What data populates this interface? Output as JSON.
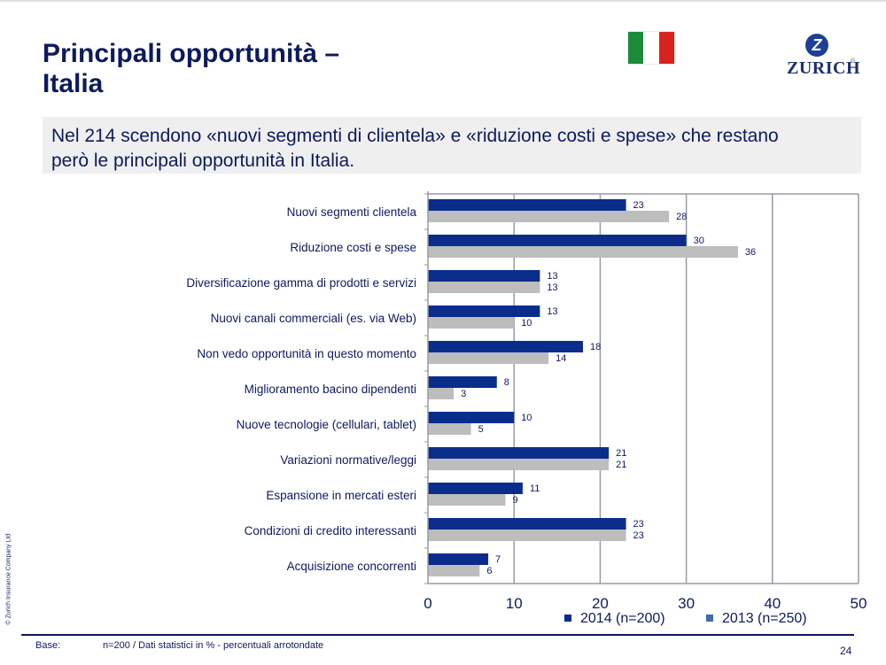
{
  "slide": {
    "title_line1": "Principali opportunità –",
    "title_line2": "Italia",
    "subtitle_line1": "Nel 214 scendono «nuovi segmenti di clientela» e «riduzione costi e spese» che restano",
    "subtitle_line2": "però le principali opportunità in Italia.",
    "logo_text": "ZURICH",
    "logo_mark": "Z",
    "logo_registered": "®",
    "flag_colors": [
      "#1a8c3c",
      "#ffffff",
      "#d9221e"
    ],
    "copyright": "© Zurich Insurance Company Ltd",
    "footer_base_label": "Base:",
    "footer_note": "n=200 / Dati statistici in %   - percentuali arrotondate",
    "page_number": "24"
  },
  "chart_data": {
    "type": "bar",
    "orientation": "horizontal",
    "title": "",
    "xlabel": "",
    "ylabel": "",
    "xlim": [
      0,
      50
    ],
    "xticks": [
      0,
      10,
      20,
      30,
      40,
      50
    ],
    "grid": true,
    "legend_position": "bottom",
    "categories": [
      "Nuovi segmenti clientela",
      "Riduzione costi e spese",
      "Diversificazione gamma di prodotti e servizi",
      "Nuovi canali commerciali (es. via Web)",
      "Non vedo opportunità in questo momento",
      "Miglioramento bacino dipendenti",
      "Nuove tecnologie (cellulari, tablet)",
      "Variazioni normative/leggi",
      "Espansione in mercati esteri",
      "Condizioni di credito interessanti",
      "Acquisizione concorrenti"
    ],
    "series": [
      {
        "name": "2014 (n=200)",
        "color": "#0a2d8c",
        "legend_color": "#0a2d8c",
        "values": [
          23,
          30,
          13,
          13,
          18,
          8,
          10,
          21,
          11,
          23,
          7
        ]
      },
      {
        "name": "2013 (n=250)",
        "color": "#bdbdbd",
        "legend_color": "#3a6ea5",
        "values": [
          28,
          36,
          13,
          10,
          14,
          3,
          5,
          21,
          9,
          23,
          6
        ]
      }
    ]
  }
}
